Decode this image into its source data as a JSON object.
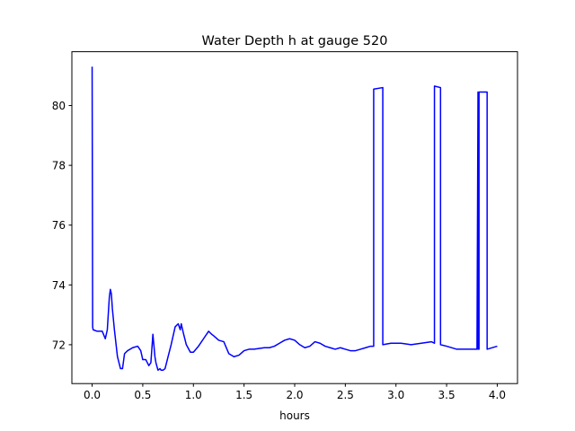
{
  "chart_data": {
    "type": "line",
    "title": "Water Depth h at gauge 520",
    "xlabel": "hours",
    "ylabel": "",
    "xlim": [
      -0.2,
      4.2
    ],
    "ylim": [
      70.7,
      81.8
    ],
    "xticks": [
      0.0,
      0.5,
      1.0,
      1.5,
      2.0,
      2.5,
      3.0,
      3.5,
      4.0
    ],
    "xtick_labels": [
      "0.0",
      "0.5",
      "1.0",
      "1.5",
      "2.0",
      "2.5",
      "3.0",
      "3.5",
      "4.0"
    ],
    "yticks": [
      72,
      74,
      76,
      78,
      80
    ],
    "ytick_labels": [
      "72",
      "74",
      "76",
      "78",
      "80"
    ],
    "grid": false,
    "legend": "none",
    "series": [
      {
        "color": "#0000ff",
        "x": [
          0.0,
          0.0,
          0.003,
          0.005,
          0.01,
          0.05,
          0.1,
          0.13,
          0.15,
          0.17,
          0.18,
          0.19,
          0.2,
          0.22,
          0.25,
          0.28,
          0.3,
          0.32,
          0.35,
          0.4,
          0.45,
          0.48,
          0.5,
          0.53,
          0.56,
          0.58,
          0.6,
          0.62,
          0.63,
          0.65,
          0.67,
          0.68,
          0.7,
          0.72,
          0.75,
          0.78,
          0.82,
          0.85,
          0.87,
          0.88,
          0.9,
          0.93,
          0.97,
          1.0,
          1.05,
          1.1,
          1.15,
          1.18,
          1.2,
          1.25,
          1.3,
          1.35,
          1.4,
          1.45,
          1.5,
          1.55,
          1.6,
          1.7,
          1.75,
          1.8,
          1.85,
          1.9,
          1.95,
          2.0,
          2.05,
          2.1,
          2.15,
          2.2,
          2.25,
          2.3,
          2.35,
          2.4,
          2.45,
          2.5,
          2.55,
          2.6,
          2.65,
          2.7,
          2.75,
          2.78,
          2.78,
          2.87,
          2.87,
          2.95,
          3.05,
          3.15,
          3.25,
          3.35,
          3.38,
          3.38,
          3.44,
          3.44,
          3.5,
          3.6,
          3.7,
          3.8,
          3.8,
          3.81,
          3.81,
          3.82,
          3.82,
          3.9,
          3.9,
          4.0
        ],
        "y": [
          81.3,
          81.1,
          76.5,
          72.6,
          72.5,
          72.45,
          72.45,
          72.2,
          72.5,
          73.6,
          73.85,
          73.7,
          73.2,
          72.5,
          71.6,
          71.2,
          71.2,
          71.7,
          71.8,
          71.9,
          71.95,
          71.8,
          71.5,
          71.5,
          71.3,
          71.4,
          72.35,
          71.6,
          71.4,
          71.15,
          71.2,
          71.15,
          71.15,
          71.2,
          71.6,
          72.0,
          72.6,
          72.7,
          72.5,
          72.7,
          72.4,
          72.0,
          71.75,
          71.75,
          71.95,
          72.2,
          72.45,
          72.35,
          72.3,
          72.15,
          72.1,
          71.7,
          71.6,
          71.65,
          71.8,
          71.85,
          71.85,
          71.9,
          71.9,
          71.95,
          72.05,
          72.15,
          72.2,
          72.15,
          72.0,
          71.9,
          71.95,
          72.1,
          72.05,
          71.95,
          71.9,
          71.85,
          71.9,
          71.85,
          71.8,
          71.8,
          71.85,
          71.9,
          71.95,
          71.95,
          80.55,
          80.6,
          72.0,
          72.05,
          72.05,
          72.0,
          72.05,
          72.1,
          72.05,
          80.65,
          80.6,
          72.0,
          71.95,
          71.85,
          71.85,
          71.85,
          71.85,
          80.45,
          71.85,
          71.85,
          80.45,
          80.45,
          71.85,
          71.95
        ]
      }
    ]
  }
}
